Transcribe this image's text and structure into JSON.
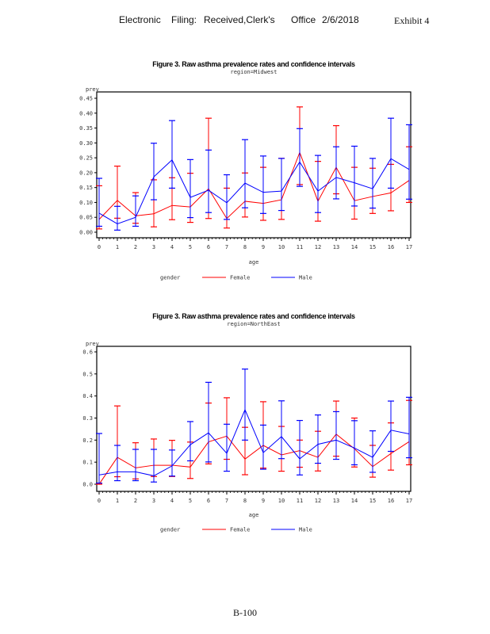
{
  "header": {
    "parts": [
      "Electronic",
      "Filing:",
      "Received,Clerk's",
      "Office",
      "2/6/2018"
    ],
    "exhibit": "Exhibit 4"
  },
  "footer": {
    "page": "B-100"
  },
  "colors": {
    "female": "#ff0000",
    "male": "#0000ff"
  },
  "chart_data": [
    {
      "type": "line",
      "title": "Figure 3. Raw asthma prevalence rates and confidence intervals",
      "subtitle": "region=Midwest",
      "xlabel": "age",
      "ylabel": "prev",
      "x": [
        0,
        1,
        2,
        3,
        4,
        5,
        6,
        7,
        8,
        9,
        10,
        11,
        12,
        13,
        14,
        15,
        16,
        17
      ],
      "xticks": [
        "0",
        "1",
        "2",
        "3",
        "4",
        "5",
        "6",
        "7",
        "8",
        "9",
        "10",
        "11",
        "12",
        "13",
        "14",
        "15",
        "16",
        "17"
      ],
      "ylim": [
        0,
        0.45
      ],
      "yticks": [
        0.0,
        0.05,
        0.1,
        0.15,
        0.2,
        0.25,
        0.3,
        0.35,
        0.4,
        0.45
      ],
      "ytick_labels": [
        "0.00",
        "0.05",
        "0.10",
        "0.15",
        "0.20",
        "0.25",
        "0.30",
        "0.35",
        "0.40",
        "0.45"
      ],
      "grid": false,
      "legend": {
        "title": "gender",
        "placement": "bottom"
      },
      "series": [
        {
          "name": "Female",
          "values": [
            0.043,
            0.107,
            0.055,
            0.062,
            0.09,
            0.085,
            0.146,
            0.046,
            0.104,
            0.097,
            0.109,
            0.268,
            0.104,
            0.218,
            0.106,
            0.12,
            0.132,
            0.174
          ],
          "lower": [
            0.011,
            0.047,
            0.03,
            0.018,
            0.042,
            0.033,
            0.046,
            0.014,
            0.051,
            0.04,
            0.043,
            0.16,
            0.037,
            0.129,
            0.044,
            0.063,
            0.072,
            0.1
          ],
          "upper": [
            0.156,
            0.222,
            0.133,
            0.176,
            0.183,
            0.198,
            0.383,
            0.148,
            0.199,
            0.218,
            0.248,
            0.421,
            0.238,
            0.358,
            0.218,
            0.215,
            0.228,
            0.287
          ]
        },
        {
          "name": "Male",
          "values": [
            0.064,
            0.028,
            0.05,
            0.186,
            0.243,
            0.117,
            0.141,
            0.099,
            0.165,
            0.134,
            0.138,
            0.236,
            0.138,
            0.184,
            0.166,
            0.146,
            0.247,
            0.211
          ],
          "lower": [
            0.02,
            0.007,
            0.02,
            0.109,
            0.148,
            0.049,
            0.066,
            0.043,
            0.082,
            0.063,
            0.073,
            0.154,
            0.066,
            0.112,
            0.088,
            0.081,
            0.148,
            0.111
          ],
          "upper": [
            0.181,
            0.087,
            0.122,
            0.299,
            0.375,
            0.244,
            0.276,
            0.193,
            0.311,
            0.256,
            0.248,
            0.348,
            0.258,
            0.287,
            0.289,
            0.248,
            0.383,
            0.361
          ]
        }
      ]
    },
    {
      "type": "line",
      "title": "Figure 3. Raw asthma prevalence rates and confidence intervals",
      "subtitle": "region=NorthEast",
      "xlabel": "age",
      "ylabel": "prev",
      "x": [
        0,
        1,
        2,
        3,
        4,
        5,
        6,
        7,
        8,
        9,
        10,
        11,
        12,
        13,
        14,
        15,
        16,
        17
      ],
      "xticks": [
        "0",
        "1",
        "2",
        "3",
        "4",
        "5",
        "6",
        "7",
        "8",
        "9",
        "10",
        "11",
        "12",
        "13",
        "14",
        "15",
        "16",
        "17"
      ],
      "ylim": [
        0,
        0.6
      ],
      "yticks": [
        0.0,
        0.1,
        0.2,
        0.3,
        0.4,
        0.5,
        0.6
      ],
      "ytick_labels": [
        "0.0",
        "0.1",
        "0.2",
        "0.3",
        "0.4",
        "0.5",
        "0.6"
      ],
      "grid": false,
      "legend": {
        "title": "gender",
        "placement": "bottom"
      },
      "series": [
        {
          "name": "Female",
          "values": [
            0.0,
            0.122,
            0.074,
            0.086,
            0.086,
            0.078,
            0.192,
            0.218,
            0.114,
            0.176,
            0.133,
            0.152,
            0.122,
            0.227,
            0.161,
            0.08,
            0.139,
            0.193
          ],
          "lower": [
            0.0,
            0.034,
            0.024,
            0.035,
            0.035,
            0.026,
            0.092,
            0.113,
            0.043,
            0.073,
            0.059,
            0.077,
            0.06,
            0.127,
            0.078,
            0.032,
            0.064,
            0.088
          ],
          "upper": [
            0.005,
            0.355,
            0.188,
            0.205,
            0.199,
            0.191,
            0.368,
            0.392,
            0.258,
            0.374,
            0.262,
            0.2,
            0.24,
            0.377,
            0.3,
            0.176,
            0.278,
            0.38
          ]
        },
        {
          "name": "Male",
          "values": [
            0.042,
            0.056,
            0.056,
            0.038,
            0.083,
            0.179,
            0.233,
            0.14,
            0.338,
            0.143,
            0.216,
            0.115,
            0.181,
            0.2,
            0.164,
            0.122,
            0.245,
            0.228
          ],
          "lower": [
            0.005,
            0.016,
            0.016,
            0.01,
            0.037,
            0.106,
            0.101,
            0.059,
            0.2,
            0.068,
            0.116,
            0.042,
            0.095,
            0.113,
            0.088,
            0.054,
            0.149,
            0.12
          ],
          "upper": [
            0.23,
            0.176,
            0.158,
            0.158,
            0.155,
            0.284,
            0.462,
            0.272,
            0.522,
            0.268,
            0.378,
            0.289,
            0.314,
            0.329,
            0.288,
            0.242,
            0.377,
            0.394
          ]
        }
      ]
    }
  ]
}
